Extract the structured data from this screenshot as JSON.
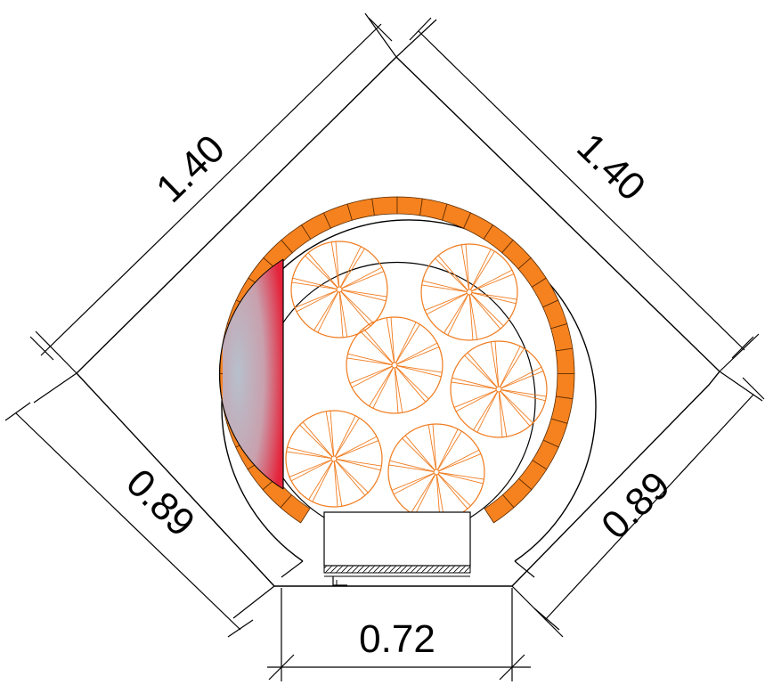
{
  "dimensions": {
    "upper_left": "1.40",
    "upper_right": "1.40",
    "lower_left": "0.89",
    "lower_right": "0.89",
    "bottom": "0.72"
  },
  "colors": {
    "line": "#000000",
    "brick_fill": "#f5821f",
    "brick_stroke": "#5a2a00",
    "stone_stroke": "#f07b1e",
    "heater_red": "#e5233a",
    "heater_grey": "#b7c0cc",
    "background": "#ffffff"
  },
  "stones": {
    "count": 6,
    "spokes_per_stone": 10
  },
  "brick_ring": {
    "segment_count": 36
  }
}
